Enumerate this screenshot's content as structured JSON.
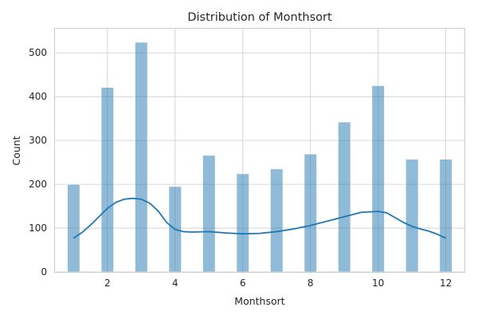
{
  "chart_data": {
    "type": "bar",
    "title": "Distribution of Monthsort",
    "xlabel": "Monthsort",
    "ylabel": "Count",
    "xlim": [
      0.45,
      12.55
    ],
    "ylim": [
      0,
      555
    ],
    "xticks": [
      2,
      4,
      6,
      8,
      10,
      12
    ],
    "yticks": [
      0,
      100,
      200,
      300,
      400,
      500
    ],
    "bin_width": 0.3667,
    "grid": true,
    "legend": "none",
    "colors": {
      "bar": "#1f77b4",
      "line": "#1f77b4",
      "grid": "#cccccc",
      "text": "#262626"
    },
    "series": [
      {
        "type": "histogram",
        "bins": [
          {
            "x": 1,
            "count": 200
          },
          {
            "x": 2,
            "count": 421
          },
          {
            "x": 3,
            "count": 524
          },
          {
            "x": 4,
            "count": 195
          },
          {
            "x": 5,
            "count": 266
          },
          {
            "x": 6,
            "count": 224
          },
          {
            "x": 7,
            "count": 235
          },
          {
            "x": 8,
            "count": 269
          },
          {
            "x": 9,
            "count": 342
          },
          {
            "x": 10,
            "count": 425
          },
          {
            "x": 11,
            "count": 257
          },
          {
            "x": 12,
            "count": 257
          }
        ]
      },
      {
        "type": "kde",
        "points": [
          [
            1.0,
            77
          ],
          [
            1.25,
            90
          ],
          [
            1.5,
            107
          ],
          [
            1.75,
            126
          ],
          [
            2.0,
            145
          ],
          [
            2.25,
            159
          ],
          [
            2.5,
            166
          ],
          [
            2.75,
            168
          ],
          [
            3.0,
            166
          ],
          [
            3.25,
            157
          ],
          [
            3.5,
            139
          ],
          [
            3.75,
            113
          ],
          [
            4.0,
            97
          ],
          [
            4.25,
            92
          ],
          [
            4.5,
            91
          ],
          [
            5.0,
            92
          ],
          [
            5.5,
            89
          ],
          [
            6.0,
            87
          ],
          [
            6.5,
            88
          ],
          [
            7.0,
            92
          ],
          [
            7.5,
            98
          ],
          [
            8.0,
            106
          ],
          [
            8.5,
            116
          ],
          [
            9.0,
            126
          ],
          [
            9.5,
            136
          ],
          [
            10.0,
            138
          ],
          [
            10.25,
            135
          ],
          [
            10.5,
            124
          ],
          [
            10.75,
            113
          ],
          [
            11.0,
            104
          ],
          [
            11.25,
            98
          ],
          [
            11.5,
            93
          ],
          [
            11.75,
            86
          ],
          [
            12.0,
            77
          ]
        ]
      }
    ]
  }
}
